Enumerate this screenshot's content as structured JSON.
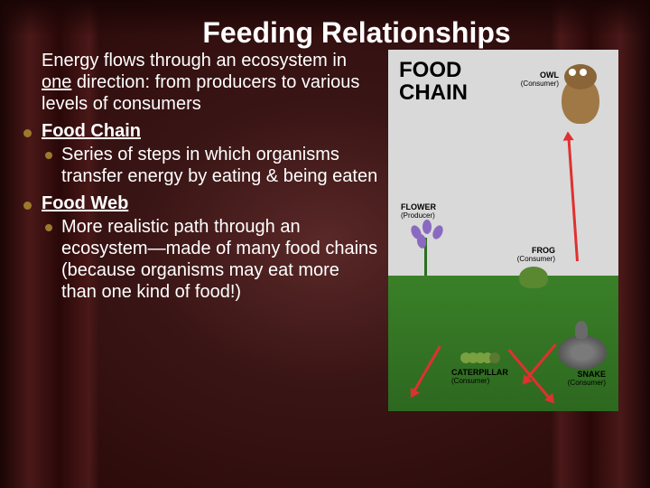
{
  "title": "Feeding Relationships",
  "bullets": {
    "intro_pre": "Energy flows through an ecosystem in ",
    "intro_one": "one",
    "intro_post": " direction: from producers to various levels of consumers",
    "fc_label": "Food Chain",
    "fc_sub": "Series of steps in which organisms transfer energy by eating & being eaten",
    "fw_label": "Food Web",
    "fw_sub": "More realistic path through an ecosystem—made of many food chains (because organisms may eat more than one kind of food!)"
  },
  "diagram": {
    "title_line1": "FOOD",
    "title_line2": "CHAIN",
    "organisms": {
      "owl": {
        "name": "OWL",
        "role": "(Consumer)"
      },
      "flower": {
        "name": "FLOWER",
        "role": "(Producer)"
      },
      "caterpillar": {
        "name": "CATERPILLAR",
        "role": "(Consumer)"
      },
      "frog": {
        "name": "FROG",
        "role": "(Consumer)"
      },
      "snake": {
        "name": "SNAKE",
        "role": "(Consumer)"
      }
    },
    "background_color": "#d9d9d9",
    "ground_color": "#3a8028",
    "arrow_color": "#e03030"
  },
  "theme": {
    "bullet_color": "#9c7a2a",
    "text_color": "#ffffff",
    "title_fontsize": 32,
    "body_fontsize": 20
  }
}
